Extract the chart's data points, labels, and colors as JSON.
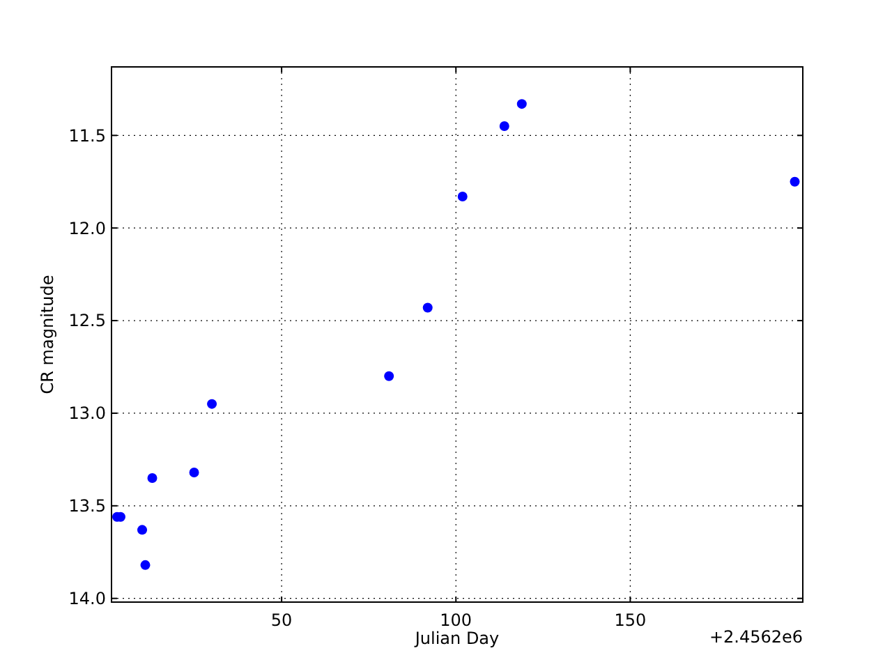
{
  "chart_data": {
    "type": "scatter",
    "xlabel": "Julian Day",
    "ylabel": "CR magnitude",
    "annotations": [
      "+2.4562e6"
    ],
    "x": [
      2.8,
      3.8,
      10.0,
      10.9,
      12.9,
      24.9,
      30.0,
      80.8,
      91.9,
      101.9,
      113.9,
      118.9,
      197.2
    ],
    "series": [
      {
        "color": "#0000ff",
        "values": [
          13.56,
          13.56,
          13.63,
          13.82,
          13.35,
          13.32,
          12.95,
          12.8,
          12.43,
          11.83,
          11.45,
          11.33,
          11.75
        ]
      }
    ],
    "xlim": [
      1.2,
      199.5
    ],
    "xticks": [
      50,
      100,
      150
    ],
    "ylim": [
      14.02,
      11.13
    ],
    "yticks": [
      {
        "value": 11.5,
        "label": "11.5"
      },
      {
        "value": 12,
        "label": "12.0"
      },
      {
        "value": 12.5,
        "label": "12.5"
      },
      {
        "value": 13,
        "label": "13.0"
      },
      {
        "value": 13.5,
        "label": "13.5"
      },
      {
        "value": 14,
        "label": "14.0"
      }
    ],
    "grid": true,
    "marker": "circle"
  }
}
